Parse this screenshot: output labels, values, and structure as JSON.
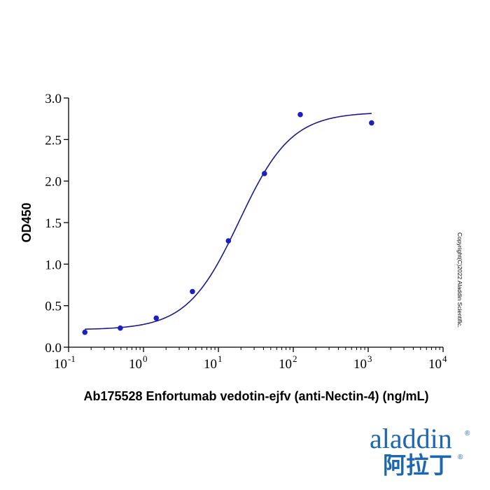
{
  "chart_data": {
    "type": "scatter",
    "xscale": "log",
    "xlim": [
      0.1,
      10000
    ],
    "ylim": [
      0,
      3.0
    ],
    "xticks": [
      {
        "value": 0.1,
        "base": "10",
        "exp": "-1"
      },
      {
        "value": 1,
        "base": "10",
        "exp": "0"
      },
      {
        "value": 10,
        "base": "10",
        "exp": "1"
      },
      {
        "value": 100,
        "base": "10",
        "exp": "2"
      },
      {
        "value": 1000,
        "base": "10",
        "exp": "3"
      },
      {
        "value": 10000,
        "base": "10",
        "exp": "4"
      }
    ],
    "yticks": [
      {
        "value": 0,
        "label": "0.0"
      },
      {
        "value": 0.5,
        "label": "0.5"
      },
      {
        "value": 1.0,
        "label": "1.0"
      },
      {
        "value": 1.5,
        "label": "1.5"
      },
      {
        "value": 2.0,
        "label": "2.0"
      },
      {
        "value": 2.5,
        "label": "2.5"
      },
      {
        "value": 3.0,
        "label": "3.0"
      }
    ],
    "xlabel": "Ab175528 Enfortumab vedotin-ejfv (anti-Nectin-4) (ng/mL)",
    "ylabel": "OD450",
    "series": [
      {
        "points": [
          {
            "x": 0.165,
            "y": 0.18
          },
          {
            "x": 0.49,
            "y": 0.23
          },
          {
            "x": 1.48,
            "y": 0.35
          },
          {
            "x": 4.5,
            "y": 0.67
          },
          {
            "x": 13.6,
            "y": 1.28
          },
          {
            "x": 41.2,
            "y": 2.09
          },
          {
            "x": 124,
            "y": 2.8
          },
          {
            "x": 1110,
            "y": 2.7
          }
        ],
        "color": "#1f1fbf",
        "fit": {
          "model": "4PL",
          "bottom": 0.21,
          "top": 2.83,
          "ec50": 19.0,
          "hill": 1.25,
          "range": [
            0.165,
            1110
          ],
          "color": "#1a1a8c"
        }
      }
    ],
    "grid": false,
    "legend": "none"
  },
  "copyright": "Copyright(C)2022 Aladdin Scientific.",
  "logo": {
    "latin": "aladdin",
    "cjk": "阿拉丁",
    "reg": "®",
    "color": "#1d67b1"
  }
}
